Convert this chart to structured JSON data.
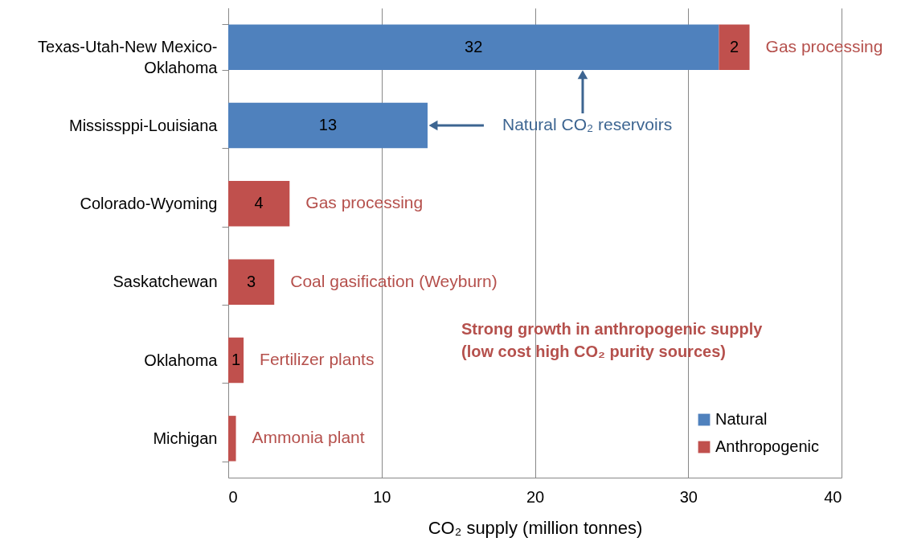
{
  "chart_data": {
    "type": "bar",
    "orientation": "horizontal",
    "stacked": true,
    "categories": [
      "Texas-Utah-New Mexico-Oklahoma",
      "Mississppi-Louisiana",
      "Colorado-Wyoming",
      "Saskatchewan",
      "Oklahoma",
      "Michigan"
    ],
    "series": [
      {
        "name": "Natural",
        "color": "#4f81bd",
        "values": [
          32,
          13,
          null,
          null,
          null,
          null
        ],
        "value_labels": [
          "32",
          "13",
          null,
          null,
          null,
          null
        ]
      },
      {
        "name": "Anthropogenic",
        "color": "#c0504d",
        "values": [
          2,
          null,
          4,
          3,
          1,
          0.5
        ],
        "value_labels": [
          "2",
          null,
          "4",
          "3",
          "1",
          null
        ]
      }
    ],
    "xlabel": "CO₂ supply (million tonnes)",
    "xlim": [
      0,
      40
    ],
    "xticks": [
      0,
      10,
      20,
      30,
      40
    ],
    "grid": "x",
    "legend": "bottom right",
    "annotations": [
      {
        "text": "Gas processing",
        "x": 34,
        "y": "Texas-Utah-New Mexico-Oklahoma"
      },
      {
        "text": "Natural CO₂ reservoirs",
        "x": 13,
        "y": "Mississppi-Louisiana"
      },
      {
        "text": "Gas processing",
        "x": 4,
        "y": "Colorado-Wyoming"
      },
      {
        "text": "Coal gasification (Weyburn)",
        "x": 3,
        "y": "Saskatchewan"
      },
      {
        "text": "Fertilizer plants",
        "x": 1,
        "y": "Oklahoma"
      },
      {
        "text": "Ammonia plant",
        "x": 0.5,
        "y": "Michigan"
      },
      "Strong growth in anthropogenic  supply\n(low cost high CO₂ purity sources)"
    ]
  }
}
